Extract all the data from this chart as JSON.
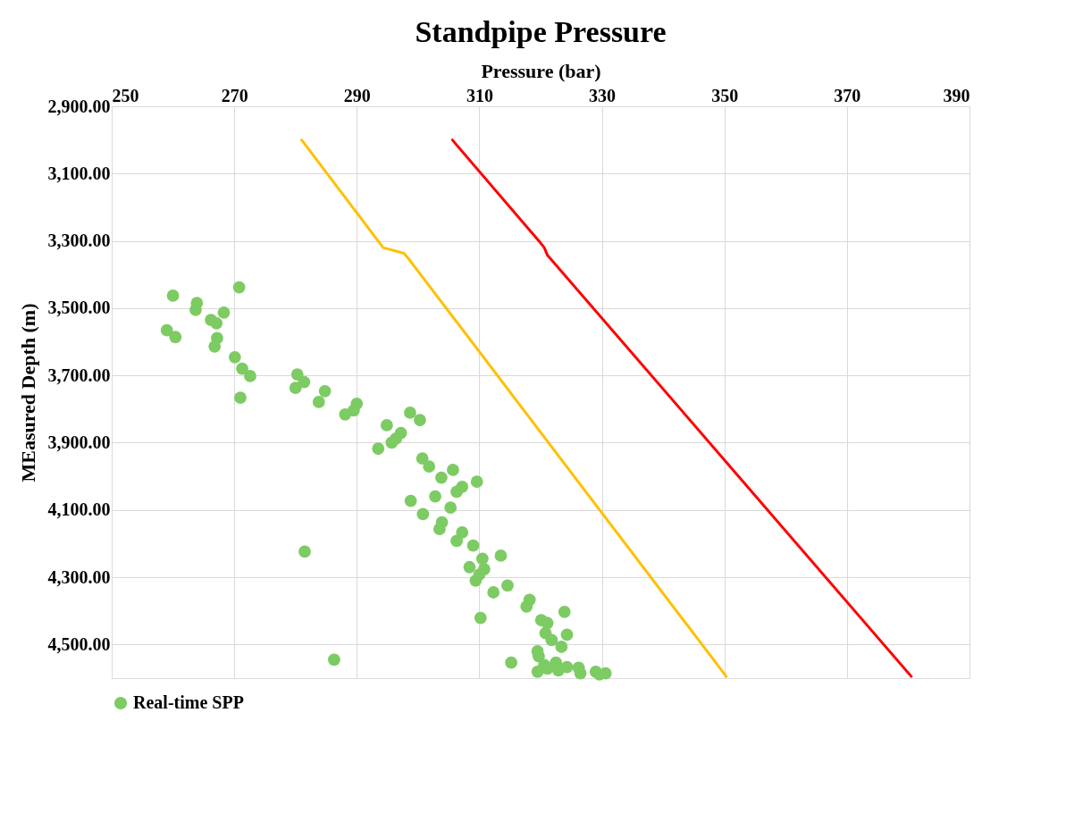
{
  "chart_data": {
    "type": "scatter",
    "title": "Standpipe Pressure",
    "xlabel": "Pressure (bar)",
    "ylabel": "MEasured Depth (m)",
    "xlim": [
      250,
      390
    ],
    "xticks": [
      250,
      270,
      290,
      310,
      330,
      350,
      370,
      390
    ],
    "ylim": [
      4600,
      2900
    ],
    "yticks": [
      {
        "value": 2900,
        "label": "2,900.00"
      },
      {
        "value": 3100,
        "label": "3,100.00"
      },
      {
        "value": 3300,
        "label": "3,300.00"
      },
      {
        "value": 3500,
        "label": "3,500.00"
      },
      {
        "value": 3700,
        "label": "3,700.00"
      },
      {
        "value": 3900,
        "label": "3,900.00"
      },
      {
        "value": 4100,
        "label": "4,100.00"
      },
      {
        "value": 4300,
        "label": "4,300.00"
      },
      {
        "value": 4500,
        "label": "4,500.00"
      }
    ],
    "grid": true,
    "legend": "bottom",
    "series": [
      {
        "type": "line",
        "color": "#ff0000",
        "marker": "none",
        "x": [
          305.6,
          319.7,
          320.6,
          321.1,
          380.5
        ],
        "values": [
          3000,
          3300,
          3320,
          3342,
          4595
        ]
      },
      {
        "type": "line",
        "color": "#ffc000",
        "marker": "none",
        "x": [
          281.0,
          294.3,
          297.7,
          298.7,
          350.3
        ],
        "values": [
          3000,
          3320,
          3337,
          3359,
          4595
        ]
      },
      {
        "name": "Real-time SPP",
        "color": "#7dcb63",
        "marker": "circle",
        "x": [
          260.0,
          263.9,
          263.7,
          270.8,
          266.2,
          267.1,
          268.3,
          259.0,
          260.4,
          267.2,
          266.8,
          270.1,
          271.3,
          272.6,
          271.0,
          280.3,
          281.4,
          280.0,
          284.8,
          283.8,
          290.0,
          289.5,
          288.1,
          294.9,
          298.7,
          300.3,
          297.2,
          296.4,
          295.7,
          293.5,
          300.7,
          301.8,
          303.8,
          305.7,
          309.6,
          307.2,
          306.3,
          302.8,
          298.8,
          305.3,
          300.8,
          303.9,
          303.5,
          307.2,
          306.3,
          309.0,
          281.5,
          310.5,
          313.5,
          308.4,
          310.8,
          310.0,
          309.4,
          314.6,
          312.3,
          318.2,
          317.7,
          323.9,
          310.2,
          320.1,
          321.1,
          320.8,
          324.3,
          321.8,
          323.4,
          319.5,
          319.7,
          286.3,
          315.2,
          322.5,
          320.6,
          319.5,
          321.1,
          322.9,
          324.3,
          326.2,
          326.5,
          329.0,
          329.6,
          330.6
        ],
        "values": [
          3463,
          3485,
          3505,
          3438,
          3535,
          3545,
          3513,
          3566,
          3586,
          3589,
          3614,
          3646,
          3680,
          3702,
          3766,
          3697,
          3720,
          3737,
          3747,
          3779,
          3784,
          3804,
          3816,
          3848,
          3811,
          3833,
          3871,
          3888,
          3900,
          3918,
          3947,
          3971,
          4004,
          3981,
          4016,
          4031,
          4046,
          4060,
          4073,
          4093,
          4112,
          4137,
          4157,
          4167,
          4192,
          4206,
          4224,
          4245,
          4236,
          4270,
          4276,
          4292,
          4310,
          4325,
          4345,
          4367,
          4387,
          4403,
          4421,
          4428,
          4436,
          4466,
          4471,
          4487,
          4507,
          4520,
          4535,
          4545,
          4554,
          4554,
          4561,
          4581,
          4572,
          4577,
          4567,
          4569,
          4586,
          4581,
          4589,
          4586
        ]
      }
    ]
  }
}
